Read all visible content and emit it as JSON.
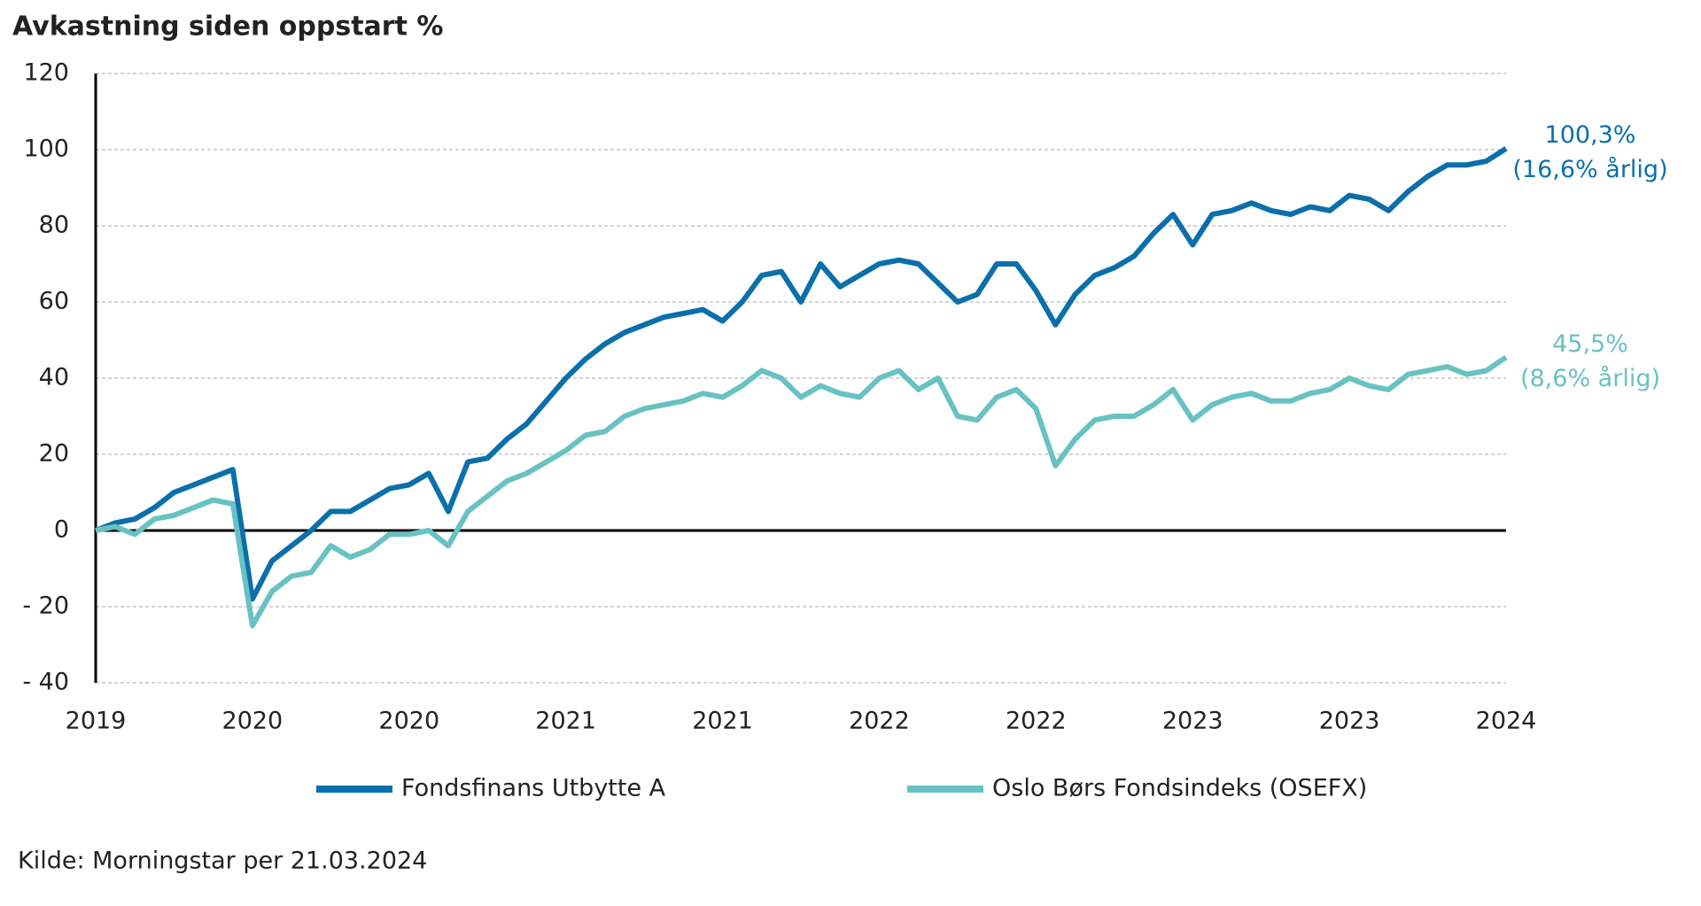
{
  "chart_data": {
    "type": "line",
    "title": "Avkastning siden oppstart %",
    "source": "Kilde: Morningstar per 21.03.2024",
    "categories": [
      "2019",
      null,
      null,
      null,
      null,
      null,
      null,
      null,
      "2020",
      null,
      null,
      null,
      null,
      null,
      null,
      null,
      "2020",
      null,
      null,
      null,
      null,
      null,
      null,
      null,
      "2021",
      null,
      null,
      null,
      null,
      null,
      null,
      null,
      "2021",
      null,
      null,
      null,
      null,
      null,
      null,
      null,
      "2022",
      null,
      null,
      null,
      null,
      null,
      null,
      null,
      "2022",
      null,
      null,
      null,
      null,
      null,
      null,
      null,
      "2023",
      null,
      null,
      null,
      null,
      null,
      null,
      null,
      "2023",
      null,
      null,
      null,
      null,
      null,
      null,
      null,
      "2024"
    ],
    "series": [
      {
        "name": "Fondsfinans Utbytte A",
        "color": "#0a6fab",
        "end_label": [
          "100,3%",
          "(16,6% årlig)"
        ],
        "values": [
          0,
          2,
          3,
          6,
          10,
          12,
          14,
          16,
          -18,
          -8,
          -4,
          0,
          5,
          5,
          8,
          11,
          12,
          15,
          5,
          18,
          19,
          24,
          28,
          34,
          40,
          45,
          49,
          52,
          54,
          56,
          57,
          58,
          55,
          60,
          67,
          68,
          60,
          70,
          64,
          67,
          70,
          71,
          70,
          65,
          60,
          62,
          70,
          70,
          63,
          54,
          62,
          67,
          69,
          72,
          78,
          83,
          75,
          83,
          84,
          86,
          84,
          83,
          85,
          84,
          88,
          87,
          84,
          89,
          93,
          96,
          96,
          97,
          100.3
        ]
      },
      {
        "name": "Oslo Børs Fondsindeks (OSEFX)",
        "color": "#68c1c2",
        "end_label": [
          "45,5%",
          "(8,6% årlig)"
        ],
        "values": [
          0,
          1,
          -1,
          3,
          4,
          6,
          8,
          7,
          -25,
          -16,
          -12,
          -11,
          -4,
          -7,
          -5,
          -1,
          -1,
          0,
          -4,
          5,
          9,
          13,
          15,
          18,
          21,
          25,
          26,
          30,
          32,
          33,
          34,
          36,
          35,
          38,
          42,
          40,
          35,
          38,
          36,
          35,
          40,
          42,
          37,
          40,
          30,
          29,
          35,
          37,
          32,
          17,
          24,
          29,
          30,
          30,
          33,
          37,
          29,
          33,
          35,
          36,
          34,
          34,
          36,
          37,
          40,
          38,
          37,
          41,
          42,
          43,
          41,
          42,
          45.5
        ]
      }
    ],
    "ylim": [
      -40,
      120
    ],
    "yticks": [
      {
        "value": -40,
        "label": "- 40"
      },
      {
        "value": -20,
        "label": "- 20"
      },
      0,
      20,
      40,
      60,
      80,
      100,
      120
    ],
    "grid": true
  }
}
